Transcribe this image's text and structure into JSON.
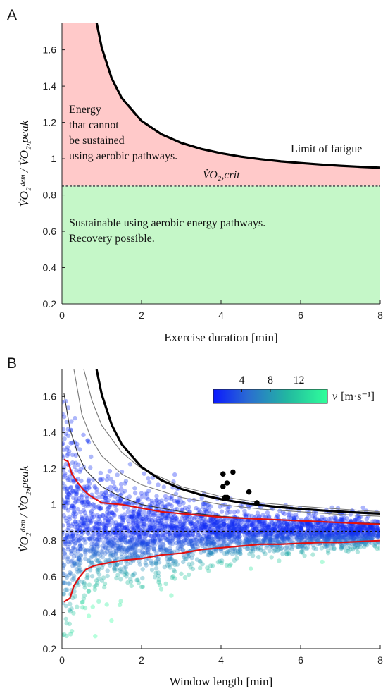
{
  "chart_data": [
    {
      "panel": "A",
      "type": "area",
      "xlabel": "Exercise duration [min]",
      "ylabel": "V̇O₂ᵈᵉᵐ / V̇O₂,peak",
      "xlim": [
        0,
        8
      ],
      "ylim": [
        0.2,
        1.75
      ],
      "xticks": [
        0,
        2,
        4,
        6,
        8
      ],
      "yticks": [
        0.2,
        0.4,
        0.6,
        0.8,
        1.0,
        1.2,
        1.4,
        1.6
      ],
      "ytick_labels": [
        "0.2",
        "0.4",
        "0.6",
        "0.8",
        "1",
        "1.2",
        "1.4",
        "1.6"
      ],
      "grid": false,
      "critical_level": 0.85,
      "critical_label": "V̇O₂,crit",
      "fatigue_limit": {
        "label": "Limit of fatigue",
        "x": [
          0.87,
          1,
          1.25,
          1.5,
          2,
          2.5,
          3,
          3.5,
          4,
          4.5,
          5,
          5.5,
          6,
          6.5,
          7,
          7.5,
          8
        ],
        "y": [
          1.75,
          1.612,
          1.443,
          1.335,
          1.208,
          1.135,
          1.087,
          1.054,
          1.03,
          1.011,
          0.997,
          0.985,
          0.976,
          0.968,
          0.961,
          0.955,
          0.95
        ]
      },
      "regions": [
        {
          "text": [
            "Energy",
            "that cannot",
            "be sustained",
            "using aerobic pathways."
          ],
          "color": "#ffc9c9"
        },
        {
          "text": [
            "Sustainable using aerobic energy pathways.",
            "Recovery possible."
          ],
          "color": "#c5f7c8"
        }
      ]
    },
    {
      "panel": "B",
      "type": "scatter",
      "xlabel": "Window length [min]",
      "ylabel": "V̇O₂ᵈᵉᵐ / V̇O₂,peak",
      "xlim": [
        0,
        8
      ],
      "ylim": [
        0.2,
        1.75
      ],
      "xticks": [
        0,
        2,
        4,
        6,
        8
      ],
      "yticks": [
        0.2,
        0.4,
        0.6,
        0.8,
        1.0,
        1.2,
        1.4,
        1.6
      ],
      "ytick_labels": [
        "0.2",
        "0.4",
        "0.6",
        "0.8",
        "1",
        "1.2",
        "1.4",
        "1.6"
      ],
      "grid": false,
      "critical_level": 0.85,
      "colorbar": {
        "variable": "v",
        "unit": "[m·s⁻¹]",
        "tick_values": [
          4,
          8,
          12
        ],
        "min": 0,
        "max": 16,
        "colors": [
          "#0a18ff",
          "#2a6bd2",
          "#22b8a0",
          "#2fff9a"
        ],
        "position": "top-right"
      },
      "fatigue_limit": {
        "x": [
          0.87,
          1,
          1.25,
          1.5,
          2,
          2.5,
          3,
          3.5,
          4,
          4.5,
          5,
          5.5,
          6,
          6.5,
          7,
          7.5,
          8
        ],
        "y": [
          1.75,
          1.612,
          1.443,
          1.335,
          1.208,
          1.135,
          1.087,
          1.054,
          1.03,
          1.011,
          0.997,
          0.985,
          0.976,
          0.968,
          0.961,
          0.955,
          0.95
        ]
      },
      "gray_curves": [
        {
          "x": [
            0.55,
            0.75,
            1,
            1.5,
            2,
            3,
            4,
            5,
            6,
            7,
            8
          ],
          "y": [
            1.75,
            1.58,
            1.44,
            1.29,
            1.2,
            1.1,
            1.045,
            1.01,
            0.99,
            0.975,
            0.96
          ]
        },
        {
          "x": [
            0.3,
            0.5,
            0.75,
            1,
            1.5,
            2,
            3,
            4,
            5,
            6,
            7,
            8
          ],
          "y": [
            1.75,
            1.5,
            1.36,
            1.27,
            1.17,
            1.11,
            1.04,
            1.0,
            0.975,
            0.96,
            0.945,
            0.935
          ]
        },
        {
          "x": [
            0.05,
            0.2,
            0.4,
            0.6,
            1,
            1.5,
            2,
            3,
            4,
            5,
            6,
            7,
            8
          ],
          "y": [
            1.62,
            1.42,
            1.28,
            1.19,
            1.1,
            1.04,
            1.0,
            0.96,
            0.935,
            0.92,
            0.91,
            0.9,
            0.895
          ]
        }
      ],
      "red_upper": {
        "x": [
          0.05,
          0.15,
          0.25,
          0.4,
          0.55,
          0.7,
          0.85,
          1,
          1.5,
          2,
          2.5,
          3,
          3.5,
          4,
          4.5,
          5,
          5.5,
          6,
          6.5,
          7,
          7.5,
          8
        ],
        "y": [
          1.25,
          1.24,
          1.17,
          1.12,
          1.08,
          1.05,
          1.03,
          1.01,
          1.0,
          0.98,
          0.96,
          0.95,
          0.94,
          0.93,
          0.925,
          0.92,
          0.915,
          0.91,
          0.905,
          0.9,
          0.895,
          0.89
        ]
      },
      "red_lower": {
        "x": [
          0.05,
          0.2,
          0.3,
          0.45,
          0.6,
          0.8,
          1,
          1.5,
          2,
          2.5,
          3,
          3.5,
          4,
          4.5,
          5,
          5.5,
          6,
          6.5,
          7,
          7.5,
          8
        ],
        "y": [
          0.46,
          0.48,
          0.55,
          0.6,
          0.64,
          0.66,
          0.67,
          0.69,
          0.7,
          0.72,
          0.73,
          0.75,
          0.76,
          0.77,
          0.78,
          0.78,
          0.785,
          0.79,
          0.79,
          0.795,
          0.8
        ]
      },
      "black_points": {
        "x": [
          4.05,
          4.05,
          4.1,
          4.15,
          4.15,
          4.3,
          4.7,
          4.9
        ],
        "y": [
          1.17,
          1.1,
          1.04,
          1.12,
          1.04,
          1.18,
          1.07,
          1.01
        ]
      }
    }
  ]
}
